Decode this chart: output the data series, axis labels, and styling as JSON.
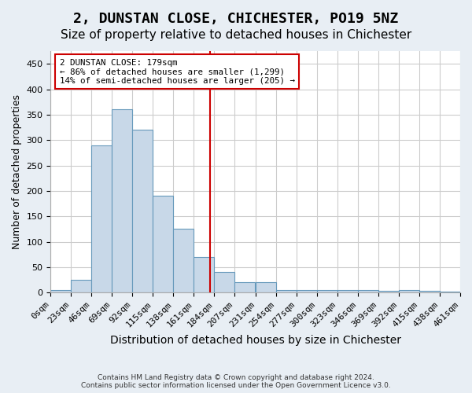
{
  "title": "2, DUNSTAN CLOSE, CHICHESTER, PO19 5NZ",
  "subtitle": "Size of property relative to detached houses in Chichester",
  "xlabel": "Distribution of detached houses by size in Chichester",
  "ylabel": "Number of detached properties",
  "bin_edges": [
    0,
    23,
    46,
    69,
    92,
    115,
    138,
    161,
    184,
    207,
    231,
    254,
    277,
    300,
    323,
    346,
    369,
    392,
    415,
    438,
    461
  ],
  "bar_heights": [
    5,
    25,
    290,
    360,
    320,
    190,
    125,
    70,
    40,
    20,
    20,
    5,
    5,
    5,
    5,
    5,
    3,
    5,
    3,
    2
  ],
  "bar_color": "#c8d8e8",
  "bar_edge_color": "#6699bb",
  "vline_x": 179,
  "vline_color": "#cc0000",
  "annotation_text": "2 DUNSTAN CLOSE: 179sqm\n← 86% of detached houses are smaller (1,299)\n14% of semi-detached houses are larger (205) →",
  "annotation_box_color": "#cc0000",
  "annotation_bg": "#ffffff",
  "footer_line1": "Contains HM Land Registry data © Crown copyright and database right 2024.",
  "footer_line2": "Contains public sector information licensed under the Open Government Licence v3.0.",
  "title_fontsize": 13,
  "subtitle_fontsize": 11,
  "xlabel_fontsize": 10,
  "ylabel_fontsize": 9,
  "tick_fontsize": 8,
  "ylim": [
    0,
    475
  ],
  "yticks": [
    0,
    50,
    100,
    150,
    200,
    250,
    300,
    350,
    400,
    450
  ],
  "background_color": "#e8eef4",
  "plot_bg_color": "#ffffff",
  "grid_color": "#cccccc"
}
